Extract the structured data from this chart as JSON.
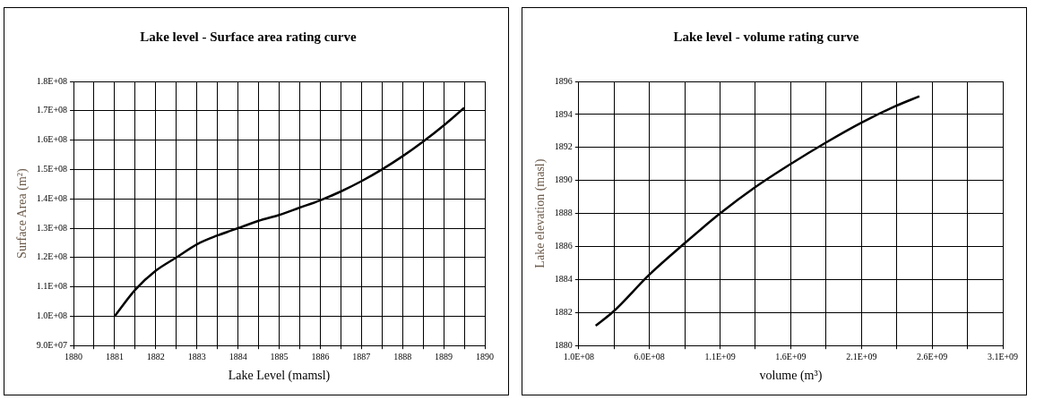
{
  "chart_data": [
    {
      "type": "line",
      "title": "Lake level - Surface area rating curve",
      "xlabel": "Lake Level (mamsl)",
      "ylabel": "Surface Area (m²)",
      "grid": true,
      "marker": "none",
      "xlim": [
        1880,
        1890
      ],
      "xticks": [
        1880,
        {
          "value": 1880.5,
          "label": null
        },
        1881,
        {
          "value": 1881.5,
          "label": null
        },
        1882,
        {
          "value": 1882.5,
          "label": null
        },
        1883,
        {
          "value": 1883.5,
          "label": null
        },
        1884,
        {
          "value": 1884.5,
          "label": null
        },
        1885,
        {
          "value": 1885.5,
          "label": null
        },
        1886,
        {
          "value": 1886.5,
          "label": null
        },
        1887,
        {
          "value": 1887.5,
          "label": null
        },
        1888,
        {
          "value": 1888.5,
          "label": null
        },
        1889,
        {
          "value": 1889.5,
          "label": null
        },
        1890
      ],
      "ylim": [
        90000000,
        180000000
      ],
      "yticks": [
        {
          "value": 90000000,
          "label": "9.0E+07"
        },
        {
          "value": 100000000,
          "label": "1.0E+08"
        },
        {
          "value": 110000000,
          "label": "1.1E+08"
        },
        {
          "value": 120000000,
          "label": "1.2E+08"
        },
        {
          "value": 130000000,
          "label": "1.3E+08"
        },
        {
          "value": 140000000,
          "label": "1.4E+08"
        },
        {
          "value": 150000000,
          "label": "1.5E+08"
        },
        {
          "value": 160000000,
          "label": "1.6E+08"
        },
        {
          "value": 170000000,
          "label": "1.7E+08"
        },
        {
          "value": 180000000,
          "label": "1.8E+08"
        }
      ],
      "x": [
        1881,
        1881.5,
        1882,
        1882.5,
        1883,
        1883.5,
        1884,
        1884.5,
        1885,
        1885.5,
        1886,
        1886.5,
        1887,
        1887.5,
        1888,
        1888.5,
        1889,
        1889.5
      ],
      "series": [
        {
          "color": "#000000",
          "values": [
            100000000,
            109000000,
            115500000,
            120000000,
            124500000,
            127500000,
            130000000,
            132500000,
            134500000,
            137000000,
            139500000,
            142500000,
            146000000,
            150000000,
            154500000,
            159500000,
            165000000,
            171000000
          ]
        }
      ]
    },
    {
      "type": "line",
      "title": "Lake level - volume rating curve",
      "xlabel": "volume (m³)",
      "ylabel": "Lake elevation (masl)",
      "grid": true,
      "marker": "none",
      "xlim": [
        100000000,
        3100000000
      ],
      "xticks": [
        {
          "value": 100000000,
          "label": "1.0E+08"
        },
        {
          "value": 350000000,
          "label": null
        },
        {
          "value": 600000000,
          "label": "6.0E+08"
        },
        {
          "value": 850000000,
          "label": null
        },
        {
          "value": 1100000000,
          "label": "1.1E+09"
        },
        {
          "value": 1350000000,
          "label": null
        },
        {
          "value": 1600000000,
          "label": "1.6E+09"
        },
        {
          "value": 1850000000,
          "label": null
        },
        {
          "value": 2100000000,
          "label": "2.1E+09"
        },
        {
          "value": 2350000000,
          "label": null
        },
        {
          "value": 2600000000,
          "label": "2.6E+09"
        },
        {
          "value": 2850000000,
          "label": null
        },
        {
          "value": 3100000000,
          "label": "3.1E+09"
        }
      ],
      "ylim": [
        1880,
        1896
      ],
      "yticks": [
        1880,
        1882,
        1884,
        1886,
        1888,
        1890,
        1892,
        1894,
        1896
      ],
      "x": [
        220000000,
        350000000,
        600000000,
        850000000,
        1100000000,
        1350000000,
        1600000000,
        1850000000,
        2100000000,
        2340000000,
        2510000000
      ],
      "series": [
        {
          "color": "#000000",
          "values": [
            1881.2,
            1882.1,
            1884.3,
            1886.2,
            1888.0,
            1889.6,
            1891.0,
            1892.3,
            1893.5,
            1894.5,
            1895.1
          ]
        }
      ]
    }
  ]
}
